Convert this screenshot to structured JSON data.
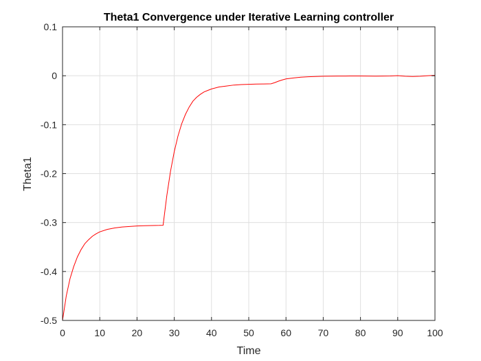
{
  "chart_data": {
    "type": "line",
    "title": "Theta1 Convergence under Iterative Learning controller",
    "xlabel": "Time",
    "ylabel": "Theta1",
    "xlim": [
      0,
      100
    ],
    "ylim": [
      -0.5,
      0.1
    ],
    "x_ticks": [
      0,
      10,
      20,
      30,
      40,
      50,
      60,
      70,
      80,
      90,
      100
    ],
    "x_tick_labels": [
      "0",
      "10",
      "20",
      "30",
      "40",
      "50",
      "60",
      "70",
      "80",
      "90",
      "100"
    ],
    "y_ticks": [
      0.1,
      0,
      -0.1,
      -0.2,
      -0.3,
      -0.4,
      -0.5
    ],
    "y_tick_labels": [
      "0.1",
      "0",
      "-0.1",
      "-0.2",
      "-0.3",
      "-0.4",
      "-0.5"
    ],
    "grid": true,
    "series": [
      {
        "color": "#ff0000",
        "x": [
          0,
          1,
          2,
          3,
          4,
          5,
          6,
          7,
          8,
          9,
          10,
          12,
          14,
          16,
          18,
          20,
          22,
          24,
          26,
          27,
          28,
          29,
          30,
          31,
          32,
          33,
          34,
          35,
          36,
          37,
          38,
          39,
          40,
          42,
          44,
          46,
          48,
          50,
          52,
          54,
          56,
          57,
          58,
          59,
          60,
          62,
          64,
          66,
          68,
          70,
          72,
          74,
          76,
          78,
          80,
          82,
          84,
          86,
          88,
          90,
          92,
          94,
          96,
          98,
          100
        ],
        "y": [
          -0.5,
          -0.45,
          -0.415,
          -0.39,
          -0.37,
          -0.355,
          -0.343,
          -0.335,
          -0.328,
          -0.323,
          -0.319,
          -0.314,
          -0.311,
          -0.309,
          -0.308,
          -0.307,
          -0.3065,
          -0.306,
          -0.3058,
          -0.3055,
          -0.245,
          -0.195,
          -0.155,
          -0.123,
          -0.098,
          -0.079,
          -0.064,
          -0.052,
          -0.044,
          -0.038,
          -0.033,
          -0.03,
          -0.027,
          -0.023,
          -0.021,
          -0.019,
          -0.018,
          -0.0175,
          -0.017,
          -0.0168,
          -0.0165,
          -0.014,
          -0.011,
          -0.0085,
          -0.0065,
          -0.0045,
          -0.003,
          -0.002,
          -0.0015,
          -0.001,
          -0.0008,
          -0.0007,
          -0.0006,
          -0.0005,
          -0.0005,
          -0.0006,
          -0.0008,
          -0.0006,
          -0.0005,
          0.0002,
          -0.001,
          -0.0015,
          -0.001,
          0.0,
          0.001
        ]
      }
    ]
  }
}
